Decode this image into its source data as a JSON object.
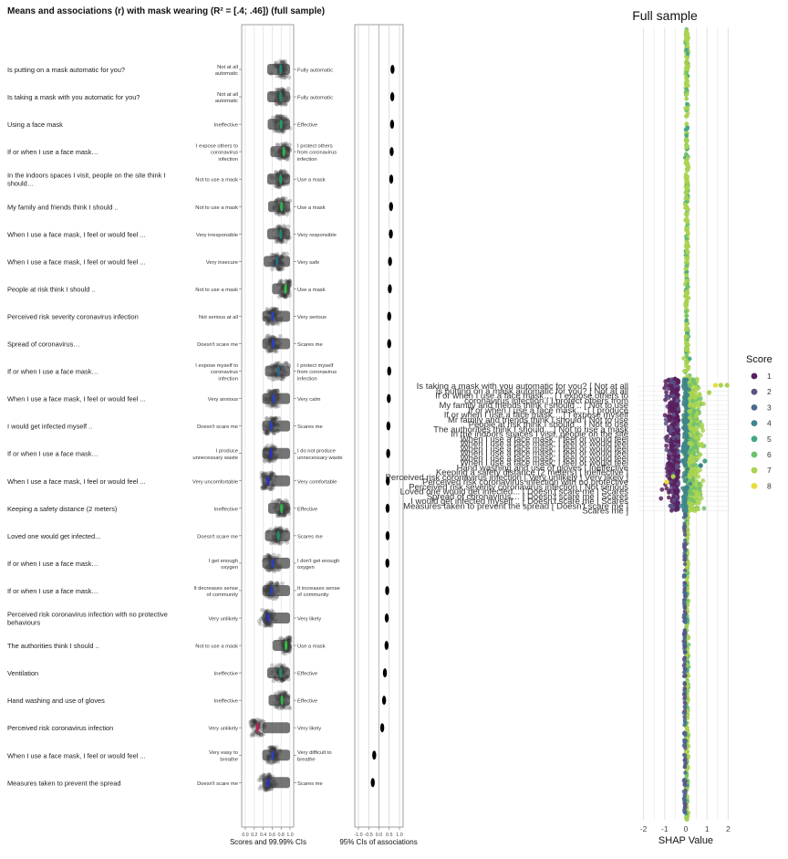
{
  "chart_data": [
    {
      "type": "scatter",
      "title": "Means and associations (r) with mask wearing (R² = [.4; .46]) (full sample)",
      "panel1_xlabel": "Scores and 99.99% CIs",
      "panel1_ticks": [
        "0.0",
        "0.2",
        "0.4",
        "0.6",
        "0.8",
        "1.0"
      ],
      "panel1_xlim": [
        0,
        1
      ],
      "panel2_xlabel": "95% CIs of associations",
      "panel2_ticks": [
        "-1.0",
        "-0.5",
        "0.0",
        "0.5",
        "1.0"
      ],
      "panel2_xlim": [
        -1,
        1
      ],
      "items": [
        {
          "question": "Is putting on a mask automatic for you?",
          "low": "Not at all automatic",
          "high": "Fully automatic",
          "mean": 0.79,
          "mean_color": "#1f8a70",
          "assoc": 0.66
        },
        {
          "question": "Is taking a mask with you automatic for you?",
          "low": "Not at all automatic",
          "high": "Fully automatic",
          "mean": 0.79,
          "mean_color": "#1f8a70",
          "assoc": 0.65
        },
        {
          "question": "Using a face mask",
          "low": "Ineffective",
          "high": "Effective",
          "mean": 0.8,
          "mean_color": "#1fa060",
          "assoc": 0.64
        },
        {
          "question": "If or when I use a face mask…",
          "low": "I expose others to coronavirus infection",
          "high": "I protect others from coronavirus infection",
          "mean": 0.86,
          "mean_color": "#2fb44a",
          "assoc": 0.62
        },
        {
          "question": "In the indoors spaces I visit, people on the site think I should…",
          "low": "Not to use a mask",
          "high": "Use a mask",
          "mean": 0.79,
          "mean_color": "#1fa060",
          "assoc": 0.6
        },
        {
          "question": "My family and friends think I should ..",
          "low": "Not to use a mask",
          "high": "Use a mask",
          "mean": 0.81,
          "mean_color": "#2fb44a",
          "assoc": 0.59
        },
        {
          "question": "When I use a face mask, I feel or would feel ...",
          "low": "Very irresponsible",
          "high": "Very responsible",
          "mean": 0.79,
          "mean_color": "#1f8a70",
          "assoc": 0.58
        },
        {
          "question": "When I use a face mask, I feel or would feel ...",
          "low": "Very insecure",
          "high": "Very safe",
          "mean": 0.71,
          "mean_color": "#2a6a90",
          "assoc": 0.54
        },
        {
          "question": "People at risk think I should ..",
          "low": "Not to use a mask",
          "high": "Use a mask",
          "mean": 0.9,
          "mean_color": "#2fc040",
          "assoc": 0.53
        },
        {
          "question": "Perceived risk severity coronavirus infection",
          "low": "Not serious at all",
          "high": "Very serious",
          "mean": 0.61,
          "mean_color": "#2a40c0",
          "assoc": 0.5
        },
        {
          "question": "Spread of coronavirus…",
          "low": "Doesn't scare me",
          "high": "Scares me",
          "mean": 0.62,
          "mean_color": "#2a40c0",
          "assoc": 0.5
        },
        {
          "question": "If or when I use a face mask…",
          "low": "I expose myself to coronavirus infection",
          "high": "I protect myself from coronavirus infection",
          "mean": 0.74,
          "mean_color": "#2a6a90",
          "assoc": 0.5
        },
        {
          "question": "When I use a face mask, I feel or would feel ...",
          "low": "Very anxious",
          "high": "Very calm",
          "mean": 0.63,
          "mean_color": "#2a40c0",
          "assoc": 0.48
        },
        {
          "question": "I would get infected myself ..",
          "low": "Doesn't scare me",
          "high": "Scares me",
          "mean": 0.58,
          "mean_color": "#2a40c0",
          "assoc": 0.46
        },
        {
          "question": "If or when I use a face mask…",
          "low": "I produce unnecessary waste",
          "high": "I do not produce unnecessary waste",
          "mean": 0.57,
          "mean_color": "#2a30c8",
          "assoc": 0.45
        },
        {
          "question": "When I use a face mask, I feel or would feel ...",
          "low": "Very uncomfortable",
          "high": "Very comfortable",
          "mean": 0.51,
          "mean_color": "#2a30c8",
          "assoc": 0.43
        },
        {
          "question": "Keeping a safety distance (2 meters)",
          "low": "Ineffective",
          "high": "Effective",
          "mean": 0.81,
          "mean_color": "#2fb44a",
          "assoc": 0.42
        },
        {
          "question": "Loved one would get infected...",
          "low": "Doesn't scare me",
          "high": "Scares me",
          "mean": 0.74,
          "mean_color": "#1f8a70",
          "assoc": 0.42
        },
        {
          "question": "If or when I use a face mask…",
          "low": "I get enough oxygen",
          "high": "I don't get enough oxygen",
          "mean": 0.61,
          "mean_color": "#2a40c0",
          "assoc": 0.41
        },
        {
          "question": "If or when I use a face mask…",
          "low": "It decreases sense of community",
          "high": "It increases sense of community",
          "mean": 0.59,
          "mean_color": "#2a40c0",
          "assoc": 0.4
        },
        {
          "question": "Perceived risk coronavirus infection with no protective behaviours",
          "low": "Very unlikely",
          "high": "Very likely",
          "mean": 0.51,
          "mean_color": "#2a30c8",
          "assoc": 0.38
        },
        {
          "question": "The authorities think I should ..",
          "low": "Not to use a mask",
          "high": "Use a mask",
          "mean": 0.91,
          "mean_color": "#2fc040",
          "assoc": 0.37
        },
        {
          "question": "Ventilation",
          "low": "Ineffective",
          "high": "Effective",
          "mean": 0.79,
          "mean_color": "#1f8a70",
          "assoc": 0.29
        },
        {
          "question": "Hand washing and use of gloves",
          "low": "Ineffective",
          "high": "Effective",
          "mean": 0.82,
          "mean_color": "#2fb44a",
          "assoc": 0.25
        },
        {
          "question": "Perceived risk coronavirus infection",
          "low": "Very unlikely",
          "high": "Very likely",
          "mean": 0.27,
          "mean_color": "#c02050",
          "assoc": 0.16
        },
        {
          "question": "When I use a face mask, I feel or would feel ...",
          "low": "Very easy to breathe",
          "high": "Very difficult to breathe",
          "mean": 0.61,
          "mean_color": "#2a40c0",
          "assoc": -0.23
        },
        {
          "question": "Measures taken to prevent the spread",
          "low": "Doesn't scare me",
          "high": "Scares me",
          "mean": 0.51,
          "mean_color": "#2a30c8",
          "assoc": -0.3
        }
      ]
    },
    {
      "type": "scatter",
      "title": "Full sample",
      "xlabel": "SHAP Value",
      "x_ticks": [
        "-2",
        "-1",
        "0",
        "1",
        "2"
      ],
      "xlim": [
        -2.2,
        2.3
      ],
      "legend_title": "Score",
      "legend_placement": "right",
      "legend_entries": [
        {
          "label": "1",
          "color": "#5a1f5e"
        },
        {
          "label": "2",
          "color": "#5c5286"
        },
        {
          "label": "3",
          "color": "#4a6a8e"
        },
        {
          "label": "4",
          "color": "#3e858c"
        },
        {
          "label": "5",
          "color": "#44a585"
        },
        {
          "label": "6",
          "color": "#6ec16d"
        },
        {
          "label": "7",
          "color": "#a9d350"
        },
        {
          "label": "8",
          "color": "#eadc3a"
        }
      ],
      "feature_labels": [
        "Is taking a mask with you automatic for you? [ Not at all",
        "Is putting on a mask automatic for you? [ Not at all",
        "If or when I use a face mask… [ I expose others to",
        "coronavirus infection | I protect others from",
        "My family and friends think I should .. [ Not to use",
        "If or when I use a face mask… [ I produce",
        "If or when I use a face mask… [ I expose myself",
        "Mr family and friends think I should [ Not to use",
        "People at risk think I should .. [ Not to use",
        "The authorities think I should .. [ Not to use a mask",
        "In the indoors spaces I visit, people on the site",
        "When I use a face mask, I feel or would feel",
        "When I use a face mask, I feel or would feel",
        "When I use a face mask, I feel or would feel",
        "When I use a face mask, I feel or would feel",
        "When I use a face mask, I feel or would feel",
        "When I use a face mask, I feel or would feel",
        "Hand washing and use of gloves [ Ineffective",
        "Keeping a safety distance (2 meters) [ Ineffective ]",
        "Perceived risk coronavirus infection [ Very unlikely | Very likely ]",
        "Perceived risk coronavirus infection with no protective",
        "Perceived risk severity coronavirus infection [ Not serious",
        "Loved one would get infected... [ Doesn't scare me | Scares",
        "Spread of coronavirus… [ Doesn't scare me | Scares",
        "I would get infected myself .. [ Doesn't scare me | Scares",
        "Measures taken to prevent the spread [ Doesn't scare me ]",
        "Scares me ]"
      ]
    }
  ]
}
